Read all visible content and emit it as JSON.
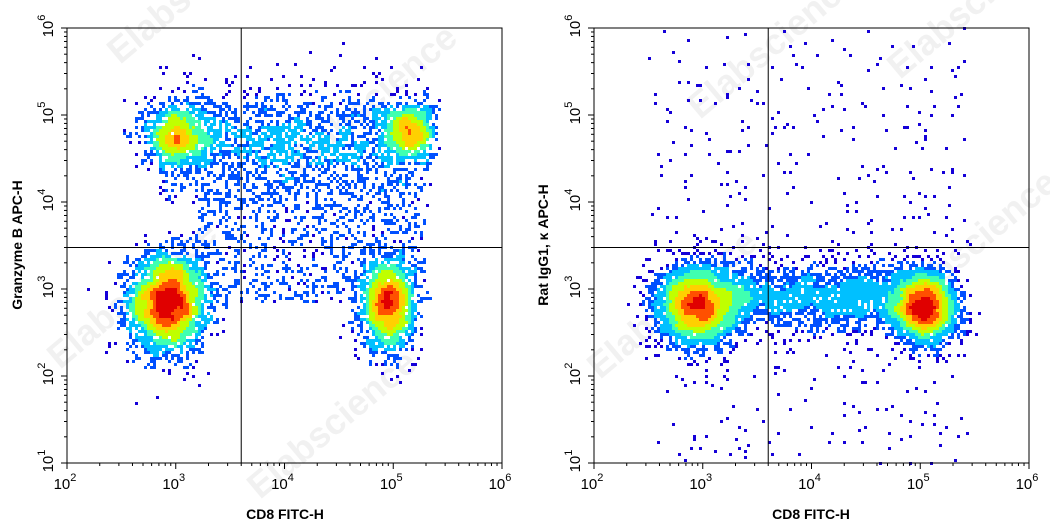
{
  "watermark": "Elabscience",
  "chart_data": [
    {
      "type": "scatter",
      "subtype": "flow-cytometry-density-dot-plot",
      "xlabel": "CD8 FITC-H",
      "ylabel": "Granzyme B APC-H",
      "xscale": "log",
      "yscale": "log",
      "xlim": [
        100,
        1000000
      ],
      "ylim": [
        10,
        1000000
      ],
      "x_ticks": [
        {
          "base": "10",
          "exp": "2"
        },
        {
          "base": "10",
          "exp": "3"
        },
        {
          "base": "10",
          "exp": "4"
        },
        {
          "base": "10",
          "exp": "5"
        },
        {
          "base": "10",
          "exp": "6"
        }
      ],
      "y_ticks": [
        {
          "base": "10",
          "exp": "1"
        },
        {
          "base": "10",
          "exp": "2"
        },
        {
          "base": "10",
          "exp": "3"
        },
        {
          "base": "10",
          "exp": "4"
        },
        {
          "base": "10",
          "exp": "5"
        },
        {
          "base": "10",
          "exp": "6"
        }
      ],
      "gate": {
        "x": 4000,
        "y": 3000
      },
      "populations": [
        {
          "x_center": 850,
          "y_center": 700,
          "x_spread_log": 0.18,
          "y_spread_log": 0.28,
          "weight": 0.33,
          "description": "CD8- Granzyme B- (dense)"
        },
        {
          "x_center": 90000,
          "y_center": 650,
          "x_spread_log": 0.12,
          "y_spread_log": 0.25,
          "weight": 0.18,
          "description": "CD8+ Granzyme B-"
        },
        {
          "x_center": 1000,
          "y_center": 60000,
          "x_spread_log": 0.15,
          "y_spread_log": 0.18,
          "weight": 0.09,
          "description": "CD8- Granzyme B+"
        },
        {
          "x_center": 140000,
          "y_center": 65000,
          "x_spread_log": 0.12,
          "y_spread_log": 0.16,
          "weight": 0.07,
          "description": "CD8+ Granzyme B+"
        },
        {
          "x_range": [
            700,
            220000
          ],
          "y_center": 50000,
          "y_spread_log": 0.3,
          "weight": 0.22,
          "description": "Granzyme B+ band"
        },
        {
          "x_range": [
            1500,
            200000
          ],
          "y_range": [
            700,
            20000
          ],
          "weight": 0.11,
          "description": "scattered intermediate events"
        }
      ],
      "colormap": [
        "#1500d8",
        "#0050ff",
        "#00c0ff",
        "#40ffb0",
        "#c0ff00",
        "#ffd000",
        "#ff5000",
        "#e00000"
      ]
    },
    {
      "type": "scatter",
      "subtype": "flow-cytometry-density-dot-plot",
      "xlabel": "CD8 FITC-H",
      "ylabel": "Rat IgG1, κ APC-H",
      "xscale": "log",
      "yscale": "log",
      "xlim": [
        100,
        1000000
      ],
      "ylim": [
        10,
        1000000
      ],
      "x_ticks": [
        {
          "base": "10",
          "exp": "2"
        },
        {
          "base": "10",
          "exp": "3"
        },
        {
          "base": "10",
          "exp": "4"
        },
        {
          "base": "10",
          "exp": "5"
        },
        {
          "base": "10",
          "exp": "6"
        }
      ],
      "y_ticks": [
        {
          "base": "10",
          "exp": "1"
        },
        {
          "base": "10",
          "exp": "2"
        },
        {
          "base": "10",
          "exp": "3"
        },
        {
          "base": "10",
          "exp": "4"
        },
        {
          "base": "10",
          "exp": "5"
        },
        {
          "base": "10",
          "exp": "6"
        }
      ],
      "gate": {
        "x": 4000,
        "y": 3000
      },
      "populations": [
        {
          "x_center": 900,
          "y_center": 650,
          "x_spread_log": 0.18,
          "y_spread_log": 0.22,
          "weight": 0.4,
          "description": "CD8- isotype (dense)"
        },
        {
          "x_center": 110000,
          "y_center": 600,
          "x_spread_log": 0.15,
          "y_spread_log": 0.2,
          "weight": 0.3,
          "description": "CD8+ isotype"
        },
        {
          "x_range": [
            1500,
            150000
          ],
          "y_center": 800,
          "y_spread_log": 0.2,
          "weight": 0.25,
          "description": "connecting band"
        },
        {
          "x_range": [
            300,
            300000
          ],
          "y_range": [
            10,
            1000000
          ],
          "weight": 0.05,
          "description": "sparse scattered events"
        }
      ],
      "colormap": [
        "#1500d8",
        "#0050ff",
        "#00c0ff",
        "#40ffb0",
        "#c0ff00",
        "#ffd000",
        "#ff5000",
        "#e00000"
      ]
    }
  ]
}
